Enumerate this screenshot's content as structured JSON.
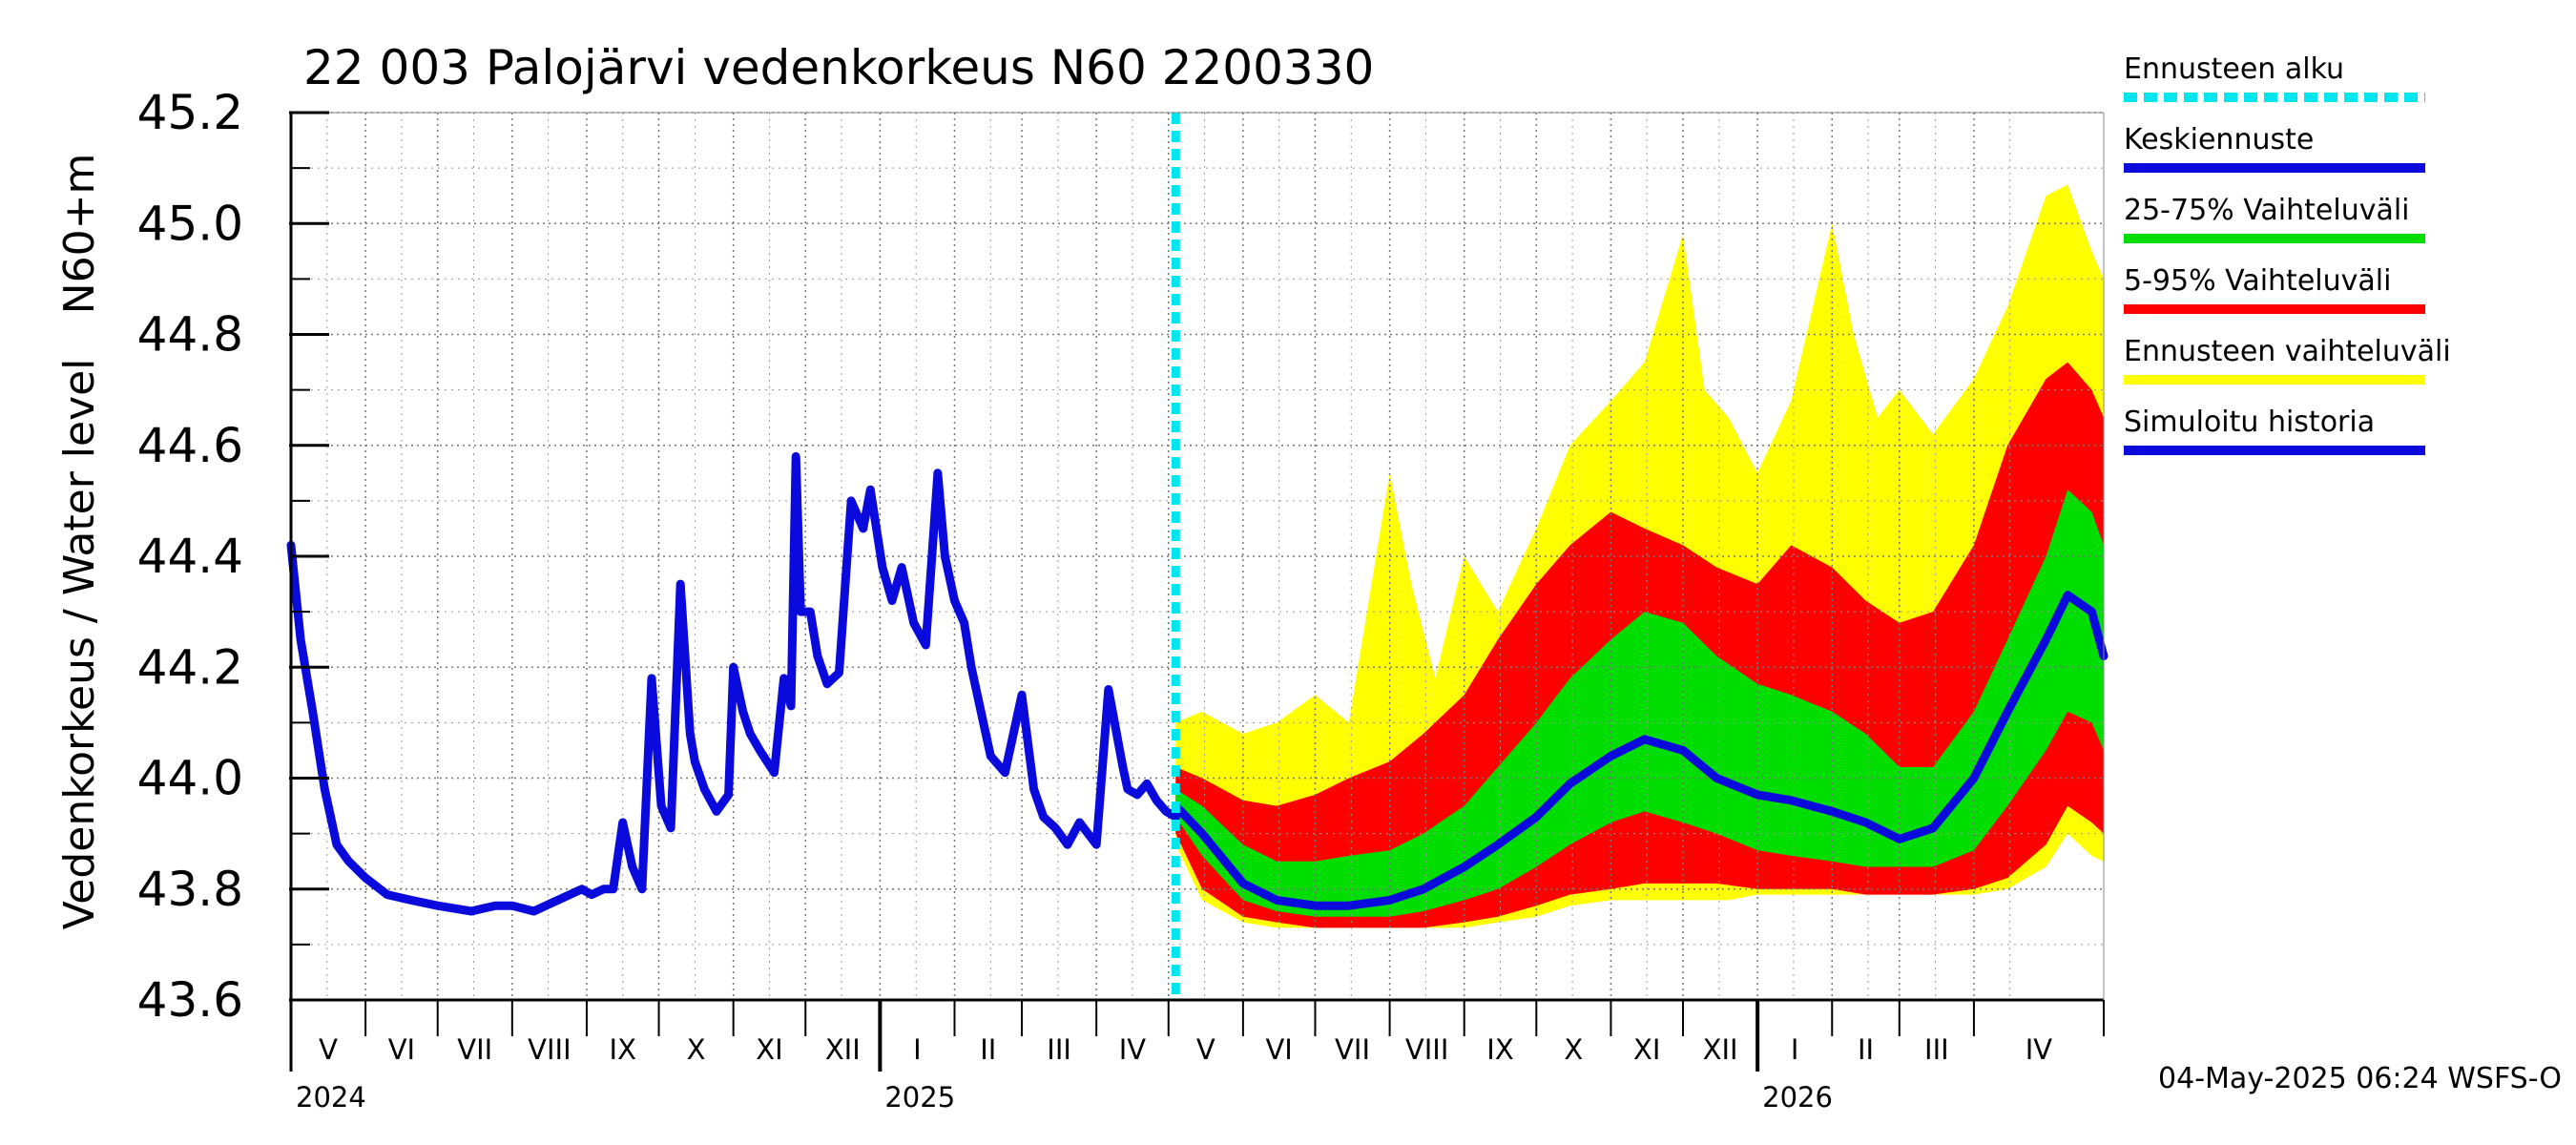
{
  "chart_data": {
    "type": "area",
    "title": "22 003 Palojärvi vedenkorkeus N60 2200330",
    "ylabel_left": "Vedenkorkeus / Water level",
    "ylabel_right": "N60+m",
    "ylim": [
      43.6,
      45.2
    ],
    "yticks": [
      "43.6",
      "43.8",
      "44.0",
      "44.2",
      "44.4",
      "44.6",
      "44.8",
      "45.0",
      "45.2"
    ],
    "x_start": "2024-05-01",
    "x_end": "2026-05-25",
    "forecast_start": "2025-05-04",
    "grid": true,
    "months": [
      {
        "label": "V",
        "start": "2024-05-01"
      },
      {
        "label": "VI",
        "start": "2024-06-01"
      },
      {
        "label": "VII",
        "start": "2024-07-01"
      },
      {
        "label": "VIII",
        "start": "2024-08-01"
      },
      {
        "label": "IX",
        "start": "2024-09-01"
      },
      {
        "label": "X",
        "start": "2024-10-01"
      },
      {
        "label": "XI",
        "start": "2024-11-01"
      },
      {
        "label": "XII",
        "start": "2024-12-01"
      },
      {
        "label": "I",
        "start": "2025-01-01"
      },
      {
        "label": "II",
        "start": "2025-02-01"
      },
      {
        "label": "III",
        "start": "2025-03-01"
      },
      {
        "label": "IV",
        "start": "2025-04-01"
      },
      {
        "label": "V",
        "start": "2025-05-01"
      },
      {
        "label": "VI",
        "start": "2025-06-01"
      },
      {
        "label": "VII",
        "start": "2025-07-01"
      },
      {
        "label": "VIII",
        "start": "2025-08-01"
      },
      {
        "label": "IX",
        "start": "2025-09-01"
      },
      {
        "label": "X",
        "start": "2025-10-01"
      },
      {
        "label": "XI",
        "start": "2025-11-01"
      },
      {
        "label": "XII",
        "start": "2025-12-01"
      },
      {
        "label": "I",
        "start": "2026-01-01"
      },
      {
        "label": "II",
        "start": "2026-02-01"
      },
      {
        "label": "III",
        "start": "2026-03-01"
      },
      {
        "label": "IV",
        "start": "2026-04-01"
      }
    ],
    "years": [
      {
        "label": "2024",
        "start": "2024-05-01"
      },
      {
        "label": "2025",
        "start": "2025-01-01"
      },
      {
        "label": "2026",
        "start": "2026-01-01"
      }
    ],
    "legend": [
      {
        "label": "Ennusteen alku",
        "color": "#00e5ee",
        "style": "dashed"
      },
      {
        "label": "Keskiennuste",
        "color": "#0a0adc",
        "style": "solid"
      },
      {
        "label": "25-75% Vaihteluväli",
        "color": "#00dd00",
        "style": "solid"
      },
      {
        "label": "5-95% Vaihteluväli",
        "color": "#ff0000",
        "style": "solid"
      },
      {
        "label": "Ennusteen vaihteluväli",
        "color": "#ffff00",
        "style": "solid"
      },
      {
        "label": "Simuloitu historia",
        "color": "#0a0adc",
        "style": "solid"
      }
    ],
    "series": [
      {
        "name": "Simuloitu historia",
        "color": "#0a0adc",
        "x": [
          "2024-05-01",
          "2024-05-05",
          "2024-05-10",
          "2024-05-15",
          "2024-05-20",
          "2024-05-25",
          "2024-06-01",
          "2024-06-10",
          "2024-06-20",
          "2024-07-01",
          "2024-07-15",
          "2024-07-25",
          "2024-08-01",
          "2024-08-10",
          "2024-08-20",
          "2024-08-30",
          "2024-09-03",
          "2024-09-08",
          "2024-09-12",
          "2024-09-16",
          "2024-09-20",
          "2024-09-24",
          "2024-09-28",
          "2024-10-02",
          "2024-10-06",
          "2024-10-10",
          "2024-10-14",
          "2024-10-16",
          "2024-10-20",
          "2024-10-25",
          "2024-10-30",
          "2024-11-01",
          "2024-11-05",
          "2024-11-08",
          "2024-11-12",
          "2024-11-18",
          "2024-11-22",
          "2024-11-25",
          "2024-11-27",
          "2024-11-29",
          "2024-12-03",
          "2024-12-06",
          "2024-12-10",
          "2024-12-15",
          "2024-12-20",
          "2024-12-25",
          "2024-12-28",
          "2025-01-02",
          "2025-01-06",
          "2025-01-10",
          "2025-01-15",
          "2025-01-20",
          "2025-01-25",
          "2025-01-28",
          "2025-02-01",
          "2025-02-05",
          "2025-02-08",
          "2025-02-12",
          "2025-02-16",
          "2025-02-22",
          "2025-03-01",
          "2025-03-06",
          "2025-03-10",
          "2025-03-15",
          "2025-03-20",
          "2025-03-25",
          "2025-04-01",
          "2025-04-06",
          "2025-04-12",
          "2025-04-14",
          "2025-04-18",
          "2025-04-22",
          "2025-04-26",
          "2025-04-30",
          "2025-05-04"
        ],
        "values": [
          44.42,
          44.25,
          44.12,
          43.98,
          43.88,
          43.85,
          43.82,
          43.79,
          43.78,
          43.77,
          43.76,
          43.77,
          43.77,
          43.76,
          43.78,
          43.8,
          43.79,
          43.8,
          43.8,
          43.92,
          43.84,
          43.8,
          44.18,
          43.95,
          43.91,
          44.35,
          44.08,
          44.03,
          43.98,
          43.94,
          43.97,
          44.2,
          44.12,
          44.08,
          44.05,
          44.01,
          44.18,
          44.13,
          44.58,
          44.3,
          44.3,
          44.22,
          44.17,
          44.19,
          44.5,
          44.45,
          44.52,
          44.38,
          44.32,
          44.38,
          44.28,
          44.24,
          44.55,
          44.4,
          44.32,
          44.28,
          44.2,
          44.12,
          44.04,
          44.01,
          44.15,
          43.98,
          43.93,
          43.91,
          43.88,
          43.92,
          43.88,
          44.16,
          44.02,
          43.98,
          43.97,
          43.99,
          43.96,
          43.94,
          43.93
        ]
      },
      {
        "name": "Keskiennuste",
        "color": "#0a0adc",
        "x": [
          "2025-05-04",
          "2025-05-15",
          "2025-06-01",
          "2025-06-15",
          "2025-07-01",
          "2025-07-15",
          "2025-08-01",
          "2025-08-15",
          "2025-09-01",
          "2025-09-15",
          "2025-10-01",
          "2025-10-15",
          "2025-11-01",
          "2025-11-15",
          "2025-12-01",
          "2025-12-15",
          "2026-01-01",
          "2026-01-15",
          "2026-02-01",
          "2026-02-15",
          "2026-03-01",
          "2026-03-15",
          "2026-04-01",
          "2026-04-15",
          "2026-05-01",
          "2026-05-10",
          "2026-05-20",
          "2026-05-25"
        ],
        "values": [
          43.95,
          43.9,
          43.81,
          43.78,
          43.77,
          43.77,
          43.78,
          43.8,
          43.84,
          43.88,
          43.93,
          43.99,
          44.04,
          44.07,
          44.05,
          44.0,
          43.97,
          43.96,
          43.94,
          43.92,
          43.89,
          43.91,
          44.0,
          44.12,
          44.25,
          44.33,
          44.3,
          44.22
        ]
      },
      {
        "name": "25-75% Vaihteluväli",
        "color": "#00dd00",
        "x": [
          "2025-05-04",
          "2025-05-15",
          "2025-06-01",
          "2025-06-15",
          "2025-07-01",
          "2025-07-15",
          "2025-08-01",
          "2025-08-15",
          "2025-09-01",
          "2025-09-15",
          "2025-10-01",
          "2025-10-15",
          "2025-11-01",
          "2025-11-15",
          "2025-12-01",
          "2025-12-15",
          "2026-01-01",
          "2026-01-15",
          "2026-02-01",
          "2026-02-15",
          "2026-03-01",
          "2026-03-15",
          "2026-04-01",
          "2026-04-15",
          "2026-05-01",
          "2026-05-10",
          "2026-05-20",
          "2026-05-25"
        ],
        "low": [
          43.93,
          43.86,
          43.78,
          43.76,
          43.75,
          43.75,
          43.75,
          43.76,
          43.78,
          43.8,
          43.84,
          43.88,
          43.92,
          43.94,
          43.92,
          43.9,
          43.87,
          43.86,
          43.85,
          43.84,
          43.84,
          43.84,
          43.87,
          43.95,
          44.05,
          44.12,
          44.1,
          44.05
        ],
        "high": [
          43.98,
          43.95,
          43.88,
          43.85,
          43.85,
          43.86,
          43.87,
          43.9,
          43.95,
          44.02,
          44.1,
          44.18,
          44.25,
          44.3,
          44.28,
          44.22,
          44.17,
          44.15,
          44.12,
          44.08,
          44.02,
          44.02,
          44.12,
          44.25,
          44.4,
          44.52,
          44.48,
          44.42
        ]
      },
      {
        "name": "5-95% Vaihteluväli",
        "color": "#ff0000",
        "x": [
          "2025-05-04",
          "2025-05-15",
          "2025-06-01",
          "2025-06-15",
          "2025-07-01",
          "2025-07-15",
          "2025-08-01",
          "2025-08-15",
          "2025-09-01",
          "2025-09-15",
          "2025-10-01",
          "2025-10-15",
          "2025-11-01",
          "2025-11-15",
          "2025-12-01",
          "2025-12-15",
          "2026-01-01",
          "2026-01-15",
          "2026-02-01",
          "2026-02-15",
          "2026-03-01",
          "2026-03-15",
          "2026-04-01",
          "2026-04-15",
          "2026-05-01",
          "2026-05-10",
          "2026-05-20",
          "2026-05-25"
        ],
        "low": [
          43.9,
          43.8,
          43.75,
          43.74,
          43.73,
          43.73,
          43.73,
          43.73,
          43.74,
          43.75,
          43.77,
          43.79,
          43.8,
          43.81,
          43.81,
          43.81,
          43.8,
          43.8,
          43.8,
          43.79,
          43.79,
          43.79,
          43.8,
          43.82,
          43.88,
          43.95,
          43.92,
          43.9
        ],
        "high": [
          44.02,
          44.0,
          43.96,
          43.95,
          43.97,
          44.0,
          44.03,
          44.08,
          44.15,
          44.25,
          44.35,
          44.42,
          44.48,
          44.45,
          44.42,
          44.38,
          44.35,
          44.42,
          44.38,
          44.32,
          44.28,
          44.3,
          44.42,
          44.6,
          44.72,
          44.75,
          44.7,
          44.65
        ]
      },
      {
        "name": "Ennusteen vaihteluväli",
        "color": "#ffff00",
        "x": [
          "2025-05-04",
          "2025-05-15",
          "2025-06-01",
          "2025-06-15",
          "2025-07-01",
          "2025-07-15",
          "2025-08-01",
          "2025-08-10",
          "2025-08-20",
          "2025-09-01",
          "2025-09-15",
          "2025-10-01",
          "2025-10-15",
          "2025-11-01",
          "2025-11-15",
          "2025-12-01",
          "2025-12-10",
          "2025-12-20",
          "2026-01-01",
          "2026-01-15",
          "2026-02-01",
          "2026-02-10",
          "2026-02-20",
          "2026-03-01",
          "2026-03-15",
          "2026-04-01",
          "2026-04-15",
          "2026-05-01",
          "2026-05-10",
          "2026-05-20",
          "2026-05-25"
        ],
        "low": [
          43.88,
          43.78,
          43.74,
          43.73,
          43.73,
          43.73,
          43.73,
          43.73,
          43.73,
          43.73,
          43.74,
          43.75,
          43.77,
          43.78,
          43.78,
          43.78,
          43.78,
          43.78,
          43.79,
          43.79,
          43.79,
          43.79,
          43.79,
          43.79,
          43.79,
          43.79,
          43.8,
          43.84,
          43.9,
          43.86,
          43.85
        ],
        "high": [
          44.1,
          44.12,
          44.08,
          44.1,
          44.15,
          44.1,
          44.55,
          44.35,
          44.18,
          44.4,
          44.3,
          44.45,
          44.6,
          44.68,
          44.75,
          44.98,
          44.7,
          44.65,
          44.55,
          44.68,
          45.0,
          44.8,
          44.65,
          44.7,
          44.62,
          44.72,
          44.85,
          45.05,
          45.07,
          44.95,
          44.9
        ]
      }
    ]
  },
  "footer": {
    "timestamp": "04-May-2025 06:24 WSFS-O"
  }
}
